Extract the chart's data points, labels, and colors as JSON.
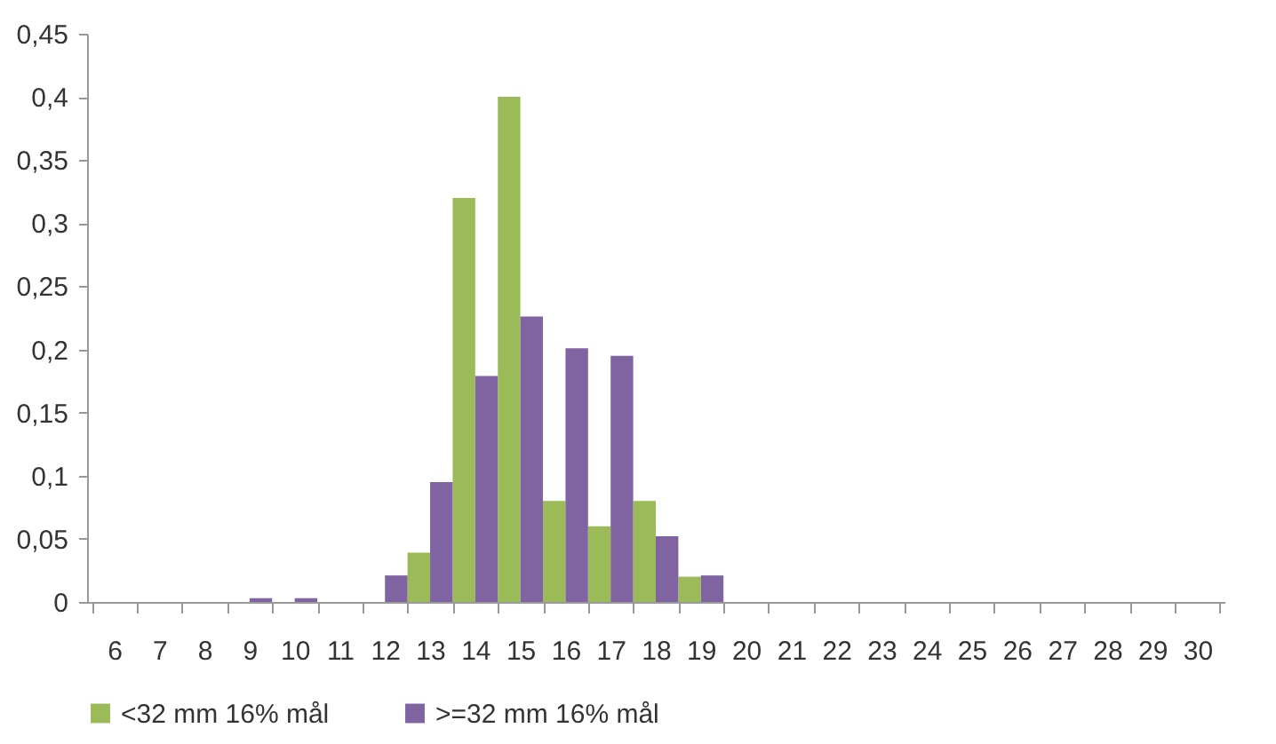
{
  "chart_data": {
    "type": "bar",
    "categories": [
      "6",
      "7",
      "8",
      "9",
      "10",
      "11",
      "12",
      "13",
      "14",
      "15",
      "16",
      "17",
      "18",
      "19",
      "20",
      "21",
      "22",
      "23",
      "24",
      "25",
      "26",
      "27",
      "28",
      "29",
      "30"
    ],
    "series": [
      {
        "name": "<32 mm 16% mål",
        "color": "#9bbb59",
        "values": [
          0,
          0,
          0,
          0,
          0,
          0,
          0,
          0.039,
          0.32,
          0.4,
          0.08,
          0.06,
          0.08,
          0.02,
          0,
          0,
          0,
          0,
          0,
          0,
          0,
          0,
          0,
          0,
          0
        ]
      },
      {
        "name": ">=32 mm 16% mål",
        "color": "#8064a2",
        "values": [
          0,
          0,
          0,
          0.003,
          0.003,
          0,
          0.021,
          0.095,
          0.179,
          0.226,
          0.201,
          0.195,
          0.052,
          0.021,
          0,
          0,
          0,
          0,
          0,
          0,
          0,
          0,
          0,
          0,
          0
        ]
      }
    ],
    "ylim": [
      0,
      0.45
    ],
    "yticks": [
      {
        "value": 0,
        "label": "0"
      },
      {
        "value": 0.05,
        "label": "0,05"
      },
      {
        "value": 0.1,
        "label": "0,1"
      },
      {
        "value": 0.15,
        "label": "0,15"
      },
      {
        "value": 0.2,
        "label": "0,2"
      },
      {
        "value": 0.25,
        "label": "0,25"
      },
      {
        "value": 0.3,
        "label": "0,3"
      },
      {
        "value": 0.35,
        "label": "0,35"
      },
      {
        "value": 0.4,
        "label": "0,4"
      },
      {
        "value": 0.45,
        "label": "0,45"
      }
    ],
    "grid": false,
    "legend": "bottom"
  }
}
